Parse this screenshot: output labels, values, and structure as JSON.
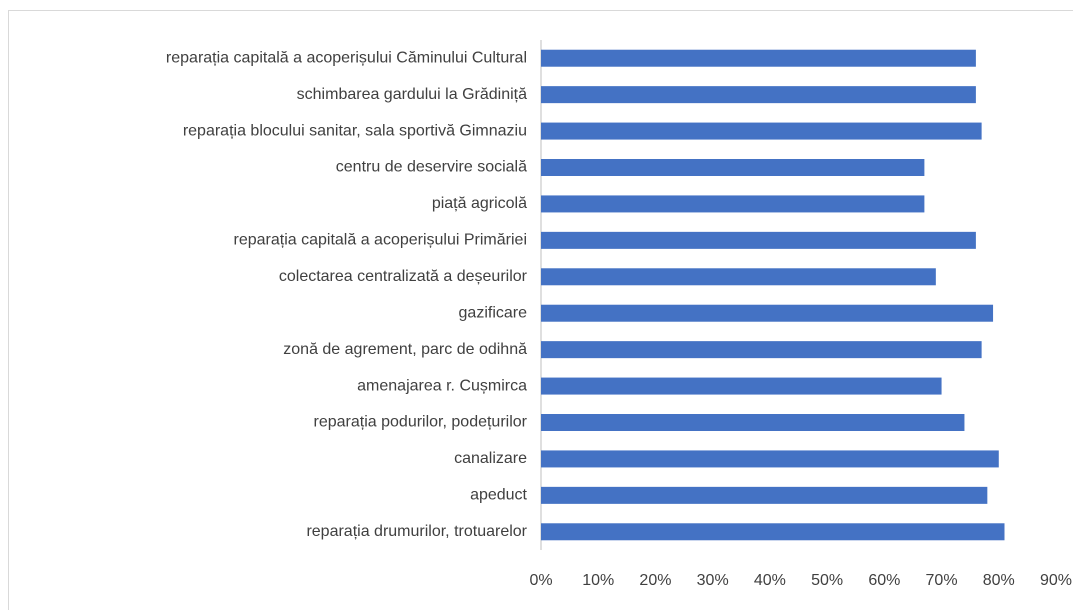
{
  "chart_data": {
    "type": "bar",
    "orientation": "horizontal",
    "categories": [
      "reparația capitală a acoperișului Căminului Cultural",
      "schimbarea gardului la Grădiniță",
      "reparația blocului sanitar, sala sportivă Gimnaziu",
      "centru de deservire socială",
      "piață agricolă",
      "reparația capitală a acoperișului Primăriei",
      "colectarea centralizată a deșeurilor",
      "gazificare",
      "zonă de agrement, parc de odihnă",
      "amenajarea r. Cușmirca",
      "reparația podurilor, podețurilor",
      "canalizare",
      "apeduct",
      "reparația drumurilor, trotuarelor"
    ],
    "values": [
      76,
      76,
      77,
      67,
      67,
      76,
      69,
      79,
      77,
      70,
      74,
      80,
      78,
      81
    ],
    "color": "#4472c4",
    "xlim": [
      0,
      90
    ],
    "xticks": [
      {
        "value": 0,
        "label": "0%"
      },
      {
        "value": 10,
        "label": "10%"
      },
      {
        "value": 20,
        "label": "20%"
      },
      {
        "value": 30,
        "label": "30%"
      },
      {
        "value": 40,
        "label": "40%"
      },
      {
        "value": 50,
        "label": "50%"
      },
      {
        "value": 60,
        "label": "60%"
      },
      {
        "value": 70,
        "label": "70%"
      },
      {
        "value": 80,
        "label": "80%"
      },
      {
        "value": 90,
        "label": "90%"
      }
    ],
    "grid": false
  }
}
